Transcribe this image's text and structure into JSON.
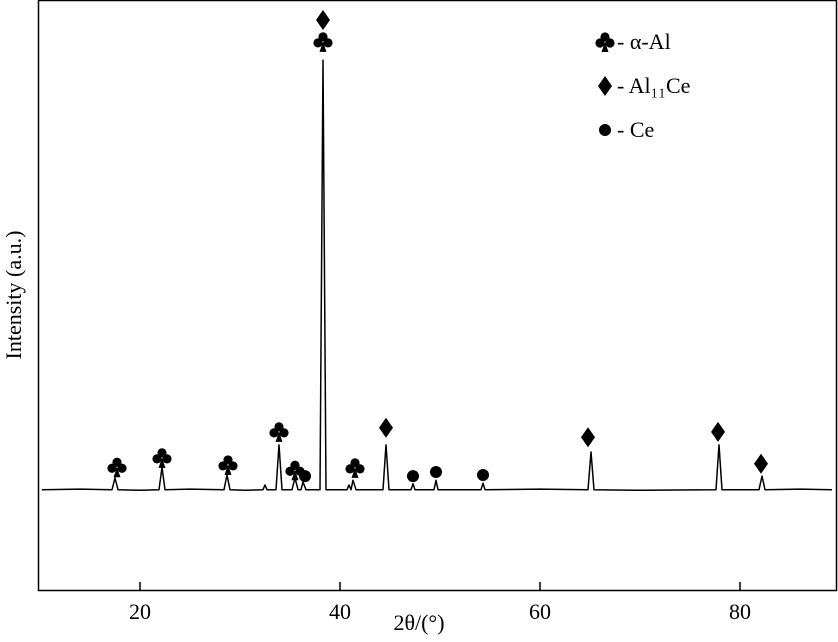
{
  "chart_data": {
    "type": "line",
    "x_label": "2θ/(°)",
    "y_label": "Intensity (a.u.)",
    "xlim": [
      9.8,
      89.8
    ],
    "ylim": [
      0,
      100
    ],
    "xticks": [
      20,
      40,
      60,
      80
    ],
    "color": "#000000",
    "x": [
      10.2,
      14,
      17.2,
      17.5,
      17.8,
      20,
      21.9,
      22.2,
      22.5,
      25,
      28.4,
      28.7,
      29,
      30.5,
      32.3,
      32.5,
      32.7,
      33.6,
      33.9,
      34.2,
      35.2,
      35.5,
      35.8,
      36.1,
      36.3,
      36.6,
      38.0,
      38.3,
      38.6,
      40.7,
      40.9,
      41.1,
      41.3,
      41.6,
      44.3,
      44.6,
      44.9,
      47.1,
      47.3,
      47.5,
      49.4,
      49.6,
      49.8,
      54.1,
      54.3,
      54.5,
      60,
      64.8,
      65.1,
      65.4,
      70,
      77.6,
      77.9,
      78.2,
      81.9,
      82.2,
      82.5,
      86,
      89.2
    ],
    "series": [
      {
        "color": "#000000",
        "values": [
          17,
          17.1,
          17,
          19.0,
          17,
          16.9,
          17,
          20.8,
          17,
          17.1,
          17,
          19.5,
          17,
          16.9,
          17,
          17.8,
          17,
          17,
          24.6,
          17,
          17,
          19.0,
          17,
          17,
          18.3,
          17,
          17,
          89.8,
          17,
          17,
          17.8,
          17,
          18.6,
          17,
          17,
          24.6,
          17,
          17,
          18.0,
          17,
          17,
          18.6,
          17,
          17,
          18.1,
          17,
          17.1,
          17,
          23.4,
          17,
          16.9,
          17,
          24.6,
          17,
          17,
          19.3,
          17,
          17.1,
          17
        ]
      }
    ],
    "phases": [
      {
        "label": "- α-Al",
        "symbol": "club",
        "x": [
          17.7,
          22.2,
          28.8,
          33.9,
          35.5,
          38.3,
          41.5
        ],
        "y": [
          20.8,
          22.4,
          21.2,
          26.8,
          20.3,
          92.9,
          20.7
        ]
      },
      {
        "label": "- Al₁₁Ce",
        "symbol": "diamond",
        "x": [
          38.3,
          44.6,
          64.8,
          77.8,
          82.1
        ],
        "y": [
          96.6,
          27.5,
          25.9,
          26.8,
          21.4
        ]
      },
      {
        "label": "- Ce",
        "symbol": "circle",
        "x": [
          36.5,
          47.3,
          49.6,
          54.3
        ],
        "y": [
          19.3,
          19.3,
          20,
          19.5
        ]
      }
    ]
  }
}
